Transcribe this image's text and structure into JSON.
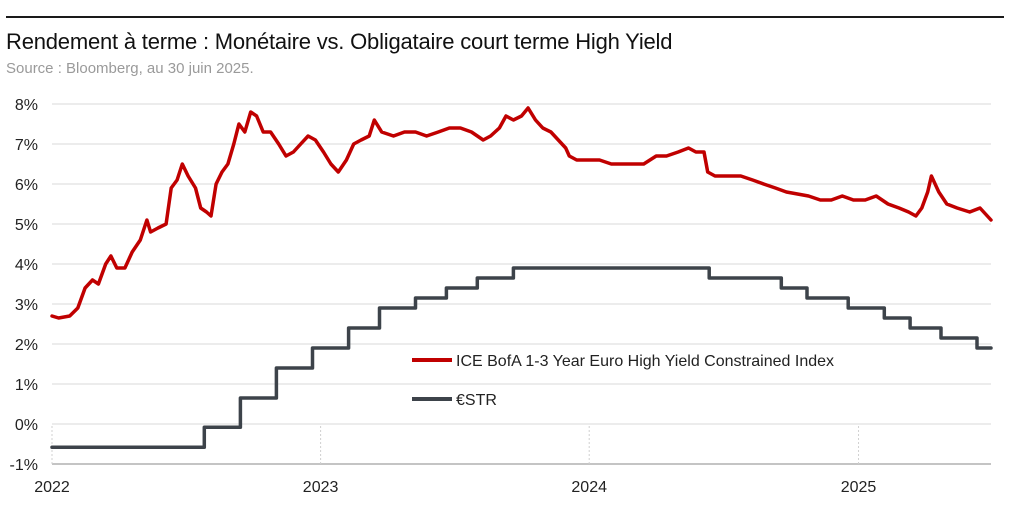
{
  "header": {
    "title": "Rendement à terme : Monétaire vs. Obligataire court terme High Yield",
    "subtitle": "Source : Bloomberg, au 30 juin 2025."
  },
  "chart_data": {
    "type": "line",
    "title": "Rendement à terme : Monétaire vs. Obligataire court terme High Yield",
    "subtitle": "Source : Bloomberg, au 30 juin 2025.",
    "xlabel": "",
    "ylabel": "",
    "x_range": [
      "2022-01-01",
      "2025-06-30"
    ],
    "x_ticks": [
      "2022",
      "2023",
      "2024",
      "2025"
    ],
    "ylim": [
      -1,
      8
    ],
    "y_ticks": [
      "8%",
      "7%",
      "6%",
      "5%",
      "4%",
      "3%",
      "2%",
      "1%",
      "0%",
      "-1%"
    ],
    "grid": "horizontal",
    "legend_position": "center-right",
    "series": [
      {
        "name": "ICE BofA 1-3 Year Euro High Yield Constrained Index",
        "color": "#c00000",
        "style": "line",
        "points": [
          [
            "2022-01-01",
            2.7
          ],
          [
            "2022-01-10",
            2.65
          ],
          [
            "2022-01-25",
            2.7
          ],
          [
            "2022-02-05",
            2.9
          ],
          [
            "2022-02-15",
            3.4
          ],
          [
            "2022-02-25",
            3.6
          ],
          [
            "2022-03-05",
            3.5
          ],
          [
            "2022-03-15",
            4.0
          ],
          [
            "2022-03-22",
            4.2
          ],
          [
            "2022-03-30",
            3.9
          ],
          [
            "2022-04-10",
            3.9
          ],
          [
            "2022-04-20",
            4.3
          ],
          [
            "2022-05-01",
            4.6
          ],
          [
            "2022-05-10",
            5.1
          ],
          [
            "2022-05-15",
            4.8
          ],
          [
            "2022-05-25",
            4.9
          ],
          [
            "2022-06-05",
            5.0
          ],
          [
            "2022-06-12",
            5.9
          ],
          [
            "2022-06-20",
            6.1
          ],
          [
            "2022-06-27",
            6.5
          ],
          [
            "2022-07-05",
            6.2
          ],
          [
            "2022-07-15",
            5.9
          ],
          [
            "2022-07-22",
            5.4
          ],
          [
            "2022-07-30",
            5.3
          ],
          [
            "2022-08-05",
            5.2
          ],
          [
            "2022-08-12",
            6.0
          ],
          [
            "2022-08-20",
            6.3
          ],
          [
            "2022-08-28",
            6.5
          ],
          [
            "2022-09-05",
            7.0
          ],
          [
            "2022-09-12",
            7.5
          ],
          [
            "2022-09-20",
            7.3
          ],
          [
            "2022-09-28",
            7.8
          ],
          [
            "2022-10-06",
            7.7
          ],
          [
            "2022-10-15",
            7.3
          ],
          [
            "2022-10-25",
            7.3
          ],
          [
            "2022-11-05",
            7.0
          ],
          [
            "2022-11-15",
            6.7
          ],
          [
            "2022-11-25",
            6.8
          ],
          [
            "2022-12-05",
            7.0
          ],
          [
            "2022-12-15",
            7.2
          ],
          [
            "2022-12-25",
            7.1
          ],
          [
            "2023-01-05",
            6.8
          ],
          [
            "2023-01-15",
            6.5
          ],
          [
            "2023-01-25",
            6.3
          ],
          [
            "2023-02-05",
            6.6
          ],
          [
            "2023-02-15",
            7.0
          ],
          [
            "2023-02-25",
            7.1
          ],
          [
            "2023-03-08",
            7.2
          ],
          [
            "2023-03-15",
            7.6
          ],
          [
            "2023-03-25",
            7.3
          ],
          [
            "2023-04-10",
            7.2
          ],
          [
            "2023-04-25",
            7.3
          ],
          [
            "2023-05-10",
            7.3
          ],
          [
            "2023-05-25",
            7.2
          ],
          [
            "2023-06-10",
            7.3
          ],
          [
            "2023-06-25",
            7.4
          ],
          [
            "2023-07-10",
            7.4
          ],
          [
            "2023-07-25",
            7.3
          ],
          [
            "2023-08-10",
            7.1
          ],
          [
            "2023-08-20",
            7.2
          ],
          [
            "2023-09-01",
            7.4
          ],
          [
            "2023-09-10",
            7.7
          ],
          [
            "2023-09-20",
            7.6
          ],
          [
            "2023-10-01",
            7.7
          ],
          [
            "2023-10-10",
            7.9
          ],
          [
            "2023-10-20",
            7.6
          ],
          [
            "2023-10-30",
            7.4
          ],
          [
            "2023-11-10",
            7.3
          ],
          [
            "2023-11-20",
            7.1
          ],
          [
            "2023-11-30",
            6.9
          ],
          [
            "2023-12-05",
            6.7
          ],
          [
            "2023-12-15",
            6.6
          ],
          [
            "2023-12-31",
            6.6
          ],
          [
            "2024-01-15",
            6.6
          ],
          [
            "2024-01-31",
            6.5
          ],
          [
            "2024-02-15",
            6.5
          ],
          [
            "2024-03-01",
            6.5
          ],
          [
            "2024-03-15",
            6.5
          ],
          [
            "2024-04-01",
            6.7
          ],
          [
            "2024-04-15",
            6.7
          ],
          [
            "2024-05-01",
            6.8
          ],
          [
            "2024-05-15",
            6.9
          ],
          [
            "2024-05-25",
            6.8
          ],
          [
            "2024-06-05",
            6.8
          ],
          [
            "2024-06-10",
            6.3
          ],
          [
            "2024-06-20",
            6.2
          ],
          [
            "2024-07-10",
            6.2
          ],
          [
            "2024-07-25",
            6.2
          ],
          [
            "2024-08-10",
            6.1
          ],
          [
            "2024-08-25",
            6.0
          ],
          [
            "2024-09-10",
            5.9
          ],
          [
            "2024-09-25",
            5.8
          ],
          [
            "2024-10-10",
            5.75
          ],
          [
            "2024-10-25",
            5.7
          ],
          [
            "2024-11-10",
            5.6
          ],
          [
            "2024-11-25",
            5.6
          ],
          [
            "2024-12-10",
            5.7
          ],
          [
            "2024-12-25",
            5.6
          ],
          [
            "2025-01-10",
            5.6
          ],
          [
            "2025-01-25",
            5.7
          ],
          [
            "2025-02-10",
            5.5
          ],
          [
            "2025-02-25",
            5.4
          ],
          [
            "2025-03-10",
            5.3
          ],
          [
            "2025-03-20",
            5.2
          ],
          [
            "2025-03-28",
            5.4
          ],
          [
            "2025-04-05",
            5.8
          ],
          [
            "2025-04-10",
            6.2
          ],
          [
            "2025-04-20",
            5.8
          ],
          [
            "2025-05-01",
            5.5
          ],
          [
            "2025-05-15",
            5.4
          ],
          [
            "2025-06-01",
            5.3
          ],
          [
            "2025-06-15",
            5.4
          ],
          [
            "2025-06-30",
            5.1
          ]
        ]
      },
      {
        "name": "€STR",
        "color": "#3d434a",
        "style": "step",
        "points": [
          [
            "2022-01-01",
            -0.58
          ],
          [
            "2022-07-27",
            -0.08
          ],
          [
            "2022-09-14",
            0.65
          ],
          [
            "2022-11-02",
            1.4
          ],
          [
            "2022-12-21",
            1.9
          ],
          [
            "2023-02-08",
            2.4
          ],
          [
            "2023-03-22",
            2.9
          ],
          [
            "2023-05-10",
            3.15
          ],
          [
            "2023-06-21",
            3.4
          ],
          [
            "2023-08-02",
            3.65
          ],
          [
            "2023-09-20",
            3.9
          ],
          [
            "2024-06-12",
            3.65
          ],
          [
            "2024-09-18",
            3.4
          ],
          [
            "2024-10-23",
            3.15
          ],
          [
            "2024-12-18",
            2.9
          ],
          [
            "2025-02-05",
            2.65
          ],
          [
            "2025-03-12",
            2.4
          ],
          [
            "2025-04-23",
            2.15
          ],
          [
            "2025-06-11",
            1.9
          ],
          [
            "2025-06-30",
            1.9
          ]
        ]
      }
    ]
  }
}
